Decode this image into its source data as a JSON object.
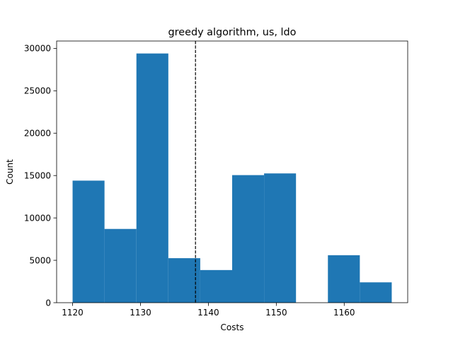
{
  "chart_data": {
    "type": "bar",
    "title": "greedy algorithm, us, ldo",
    "xlabel": "Costs",
    "ylabel": "Count",
    "bins": [
      {
        "x0": 1120.0,
        "x1": 1124.7,
        "count": 14400
      },
      {
        "x0": 1124.7,
        "x1": 1129.4,
        "count": 8700
      },
      {
        "x0": 1129.4,
        "x1": 1134.1,
        "count": 29400
      },
      {
        "x0": 1134.1,
        "x1": 1138.8,
        "count": 5250
      },
      {
        "x0": 1138.8,
        "x1": 1143.5,
        "count": 3850
      },
      {
        "x0": 1143.5,
        "x1": 1148.2,
        "count": 15050
      },
      {
        "x0": 1148.2,
        "x1": 1152.9,
        "count": 15250
      },
      {
        "x0": 1152.9,
        "x1": 1157.6,
        "count": 0
      },
      {
        "x0": 1157.6,
        "x1": 1162.3,
        "count": 5600
      },
      {
        "x0": 1162.3,
        "x1": 1167.0,
        "count": 2400
      }
    ],
    "vline": {
      "x": 1138.1,
      "style": "dashed",
      "color": "#000000"
    },
    "xlim": [
      1117.65,
      1169.35
    ],
    "ylim": [
      0,
      30870
    ],
    "xticks": [
      1120,
      1130,
      1140,
      1150,
      1160
    ],
    "yticks": [
      0,
      5000,
      10000,
      15000,
      20000,
      25000,
      30000
    ],
    "bar_color": "#1f77b4",
    "grid": false,
    "legend": "none"
  }
}
